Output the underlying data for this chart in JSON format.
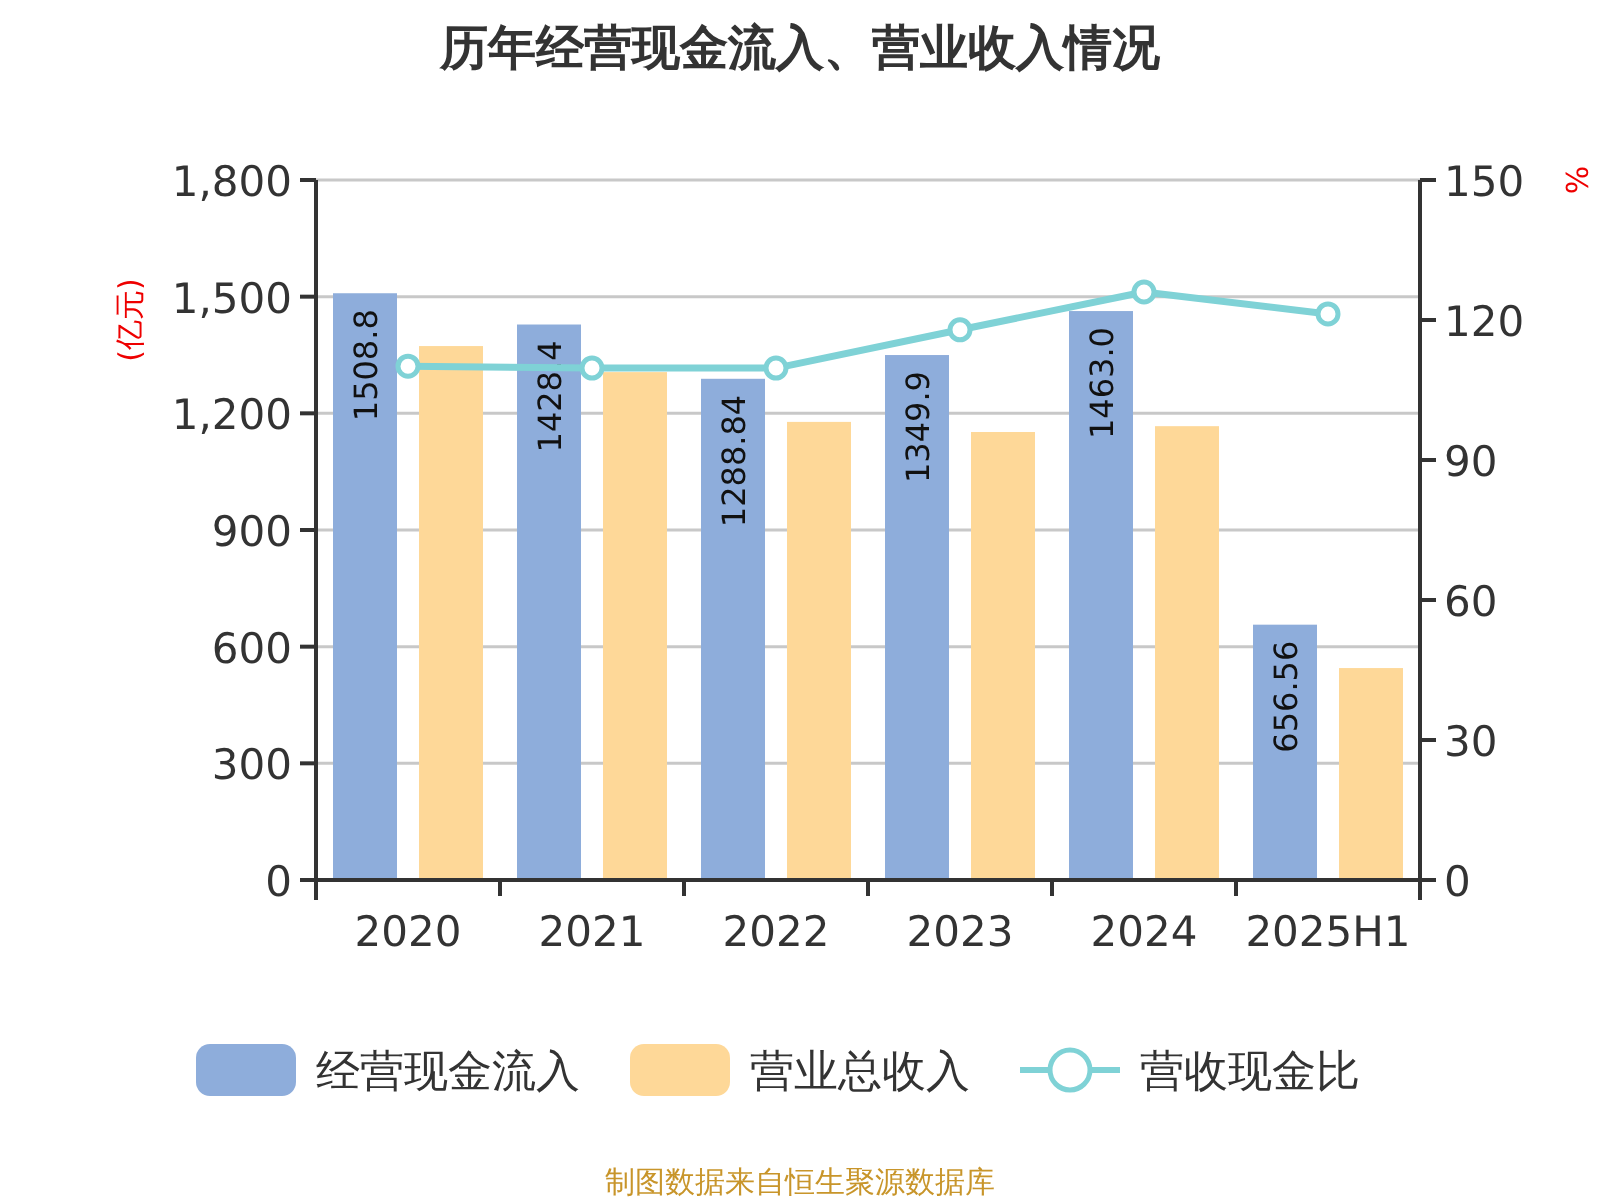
{
  "chart_data": {
    "type": "bar",
    "title": "历年经营现金流入、营业收入情况",
    "ylabel": "(亿元)",
    "y2label": "%",
    "annotations": [
      "制图数据来自恒生聚源数据库"
    ],
    "categories": [
      "2020",
      "2021",
      "2022",
      "2023",
      "2024",
      "2025H1"
    ],
    "series": [
      {
        "name": "经营现金流入",
        "color": "#8eaddb",
        "values": [
          1508.8,
          1428.4,
          1288.84,
          1349.9,
          1463.0,
          656.56
        ],
        "value_labels": [
          "1508.8",
          "1428.4",
          "1288.84",
          "1349.9",
          "1463.0",
          "656.56"
        ]
      },
      {
        "name": "营业总收入",
        "color": "#fed898",
        "values": [
          1373,
          1306,
          1178,
          1152,
          1167,
          545
        ]
      },
      {
        "name": "营收现金比",
        "type": "line",
        "axis": "y2",
        "color": "#7fd2d6",
        "marker": "circle",
        "values": [
          110.1,
          109.7,
          109.7,
          117.9,
          126.0,
          121.3
        ]
      }
    ],
    "ylim": [
      0,
      1800
    ],
    "yticks": [
      0,
      300,
      600,
      900,
      {
        "value": 1200,
        "label": "1,200"
      },
      {
        "value": 1500,
        "label": "1,500"
      },
      {
        "value": 1800,
        "label": "1,800"
      }
    ],
    "y2lim": [
      0,
      150
    ],
    "y2ticks": [
      0,
      30,
      60,
      90,
      120,
      150
    ],
    "grid": "y",
    "legend": "bottom"
  }
}
